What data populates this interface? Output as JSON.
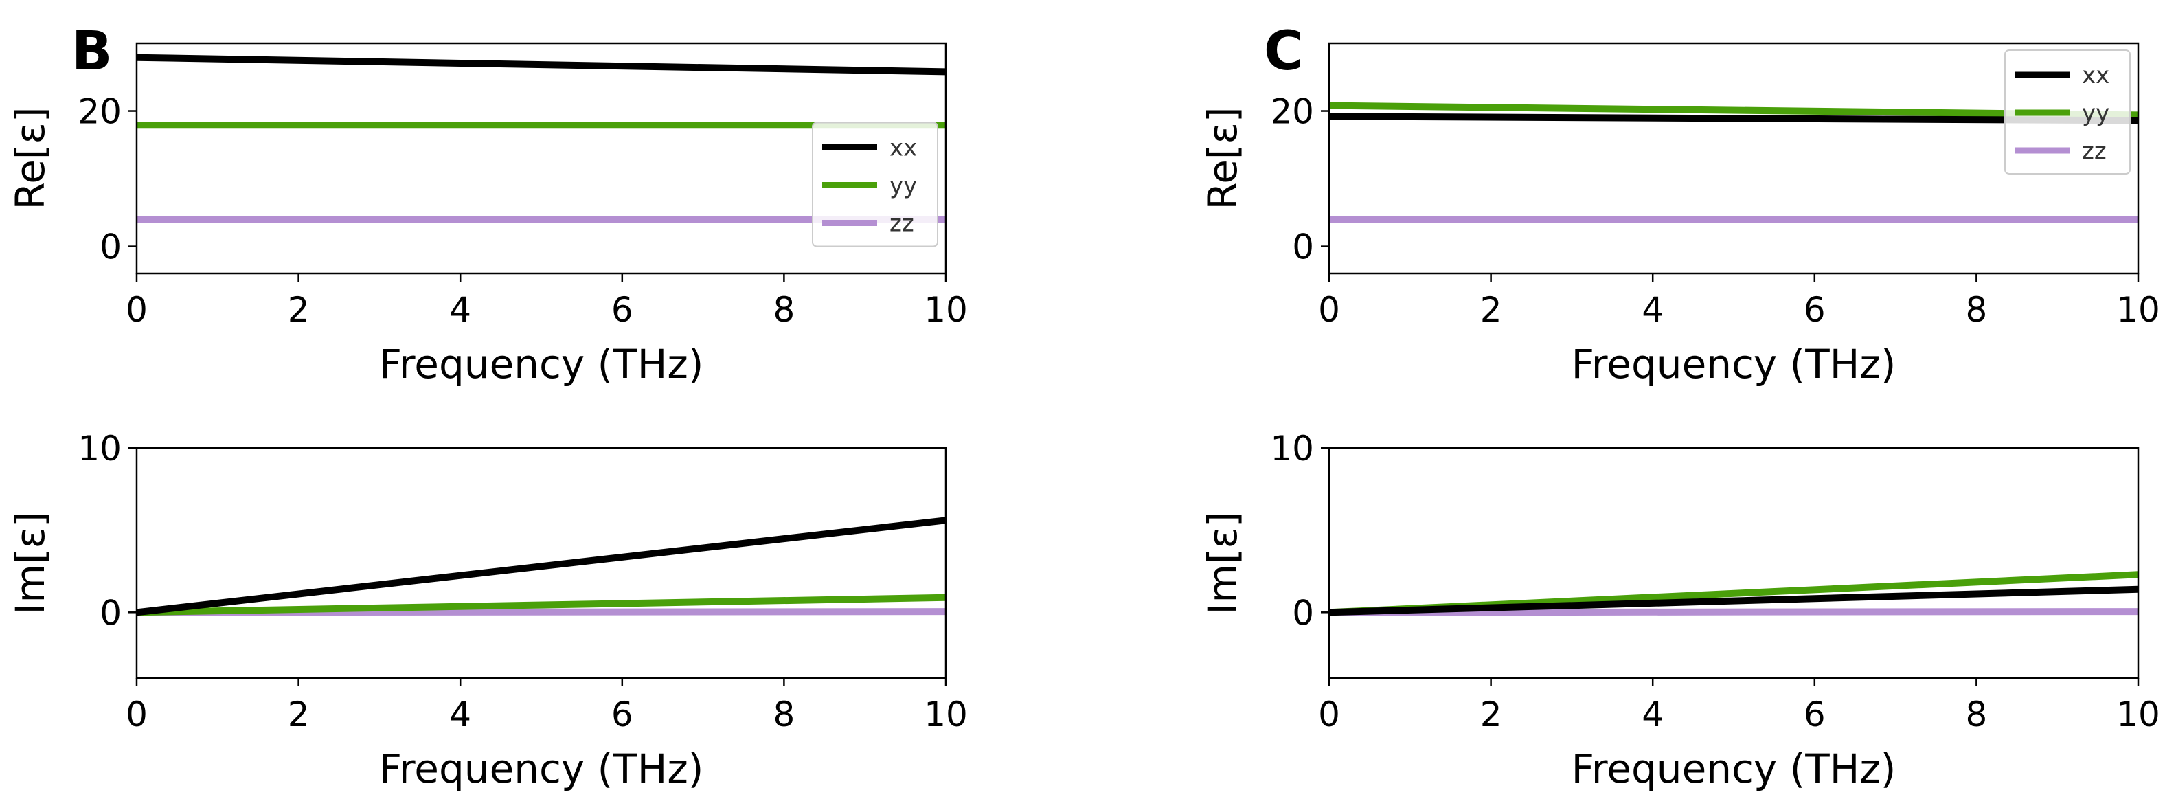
{
  "colors": {
    "xx": "#000000",
    "yy": "#4aa00a",
    "zz": "#b48fd2"
  },
  "chart_data": [
    {
      "panel": "B",
      "row": "top",
      "type": "line",
      "xlabel": "Frequency (THz)",
      "ylabel": "Re[ε]",
      "xlim": [
        0,
        10
      ],
      "ylim": [
        -4,
        30
      ],
      "xticks": [
        "0",
        "2",
        "4",
        "6",
        "8",
        "10"
      ],
      "yticks": [
        "0",
        "20"
      ],
      "legend": "right",
      "series": [
        {
          "name": "xx",
          "x": [
            0,
            10
          ],
          "y": [
            27.9,
            25.8
          ]
        },
        {
          "name": "yy",
          "x": [
            0,
            10
          ],
          "y": [
            17.9,
            17.9
          ]
        },
        {
          "name": "zz",
          "x": [
            0,
            10
          ],
          "y": [
            4.0,
            4.0
          ]
        }
      ]
    },
    {
      "panel": "",
      "row": "bottom",
      "type": "line",
      "xlabel": "Frequency (THz)",
      "ylabel": "Im[ε]",
      "xlim": [
        0,
        10
      ],
      "ylim": [
        -4,
        10
      ],
      "xticks": [
        "0",
        "2",
        "4",
        "6",
        "8",
        "10"
      ],
      "yticks": [
        "0",
        "10"
      ],
      "legend": "none",
      "series": [
        {
          "name": "xx",
          "x": [
            0,
            10
          ],
          "y": [
            0,
            5.6
          ]
        },
        {
          "name": "yy",
          "x": [
            0,
            10
          ],
          "y": [
            0,
            0.9
          ]
        },
        {
          "name": "zz",
          "x": [
            0,
            10
          ],
          "y": [
            0,
            0.05
          ]
        }
      ]
    },
    {
      "panel": "C",
      "row": "top",
      "type": "line",
      "xlabel": "Frequency (THz)",
      "ylabel": "Re[ε]",
      "xlim": [
        0,
        10
      ],
      "ylim": [
        -4,
        30
      ],
      "xticks": [
        "0",
        "2",
        "4",
        "6",
        "8",
        "10"
      ],
      "yticks": [
        "0",
        "20"
      ],
      "legend": "top-right",
      "series": [
        {
          "name": "xx",
          "x": [
            0,
            10
          ],
          "y": [
            19.2,
            18.6
          ]
        },
        {
          "name": "yy",
          "x": [
            0,
            10
          ],
          "y": [
            20.8,
            19.4
          ]
        },
        {
          "name": "zz",
          "x": [
            0,
            10
          ],
          "y": [
            4.0,
            4.0
          ]
        }
      ]
    },
    {
      "panel": "",
      "row": "bottom",
      "type": "line",
      "xlabel": "Frequency (THz)",
      "ylabel": "Im[ε]",
      "xlim": [
        0,
        10
      ],
      "ylim": [
        -4,
        10
      ],
      "xticks": [
        "0",
        "2",
        "4",
        "6",
        "8",
        "10"
      ],
      "yticks": [
        "0",
        "10"
      ],
      "legend": "none",
      "series": [
        {
          "name": "xx",
          "x": [
            0,
            10
          ],
          "y": [
            0,
            1.4
          ]
        },
        {
          "name": "yy",
          "x": [
            0,
            10
          ],
          "y": [
            0,
            2.3
          ]
        },
        {
          "name": "zz",
          "x": [
            0,
            10
          ],
          "y": [
            0,
            0.05
          ]
        }
      ]
    }
  ]
}
